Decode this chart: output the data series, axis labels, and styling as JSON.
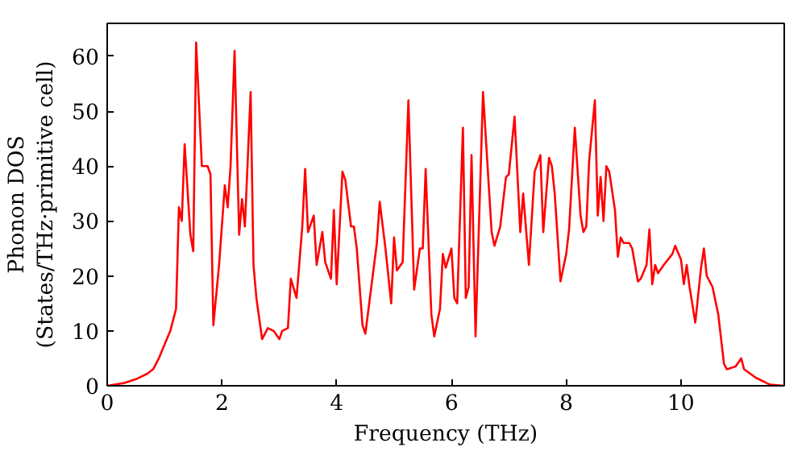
{
  "chart_data": {
    "type": "line",
    "xlabel": "Frequency (THz)",
    "ylabel": "Phonon DOS\n(States/THz·primitive cell)",
    "xlim": [
      0,
      11.8
    ],
    "ylim": [
      0,
      66
    ],
    "xticks": [
      0,
      2,
      4,
      6,
      8,
      10
    ],
    "yticks": [
      0,
      10,
      20,
      30,
      40,
      50,
      60
    ],
    "grid": false,
    "series": [
      {
        "color": "#ff0000",
        "x": [
          0,
          0.3,
          0.5,
          0.7,
          0.8,
          0.9,
          1.0,
          1.1,
          1.2,
          1.25,
          1.3,
          1.35,
          1.45,
          1.5,
          1.55,
          1.65,
          1.75,
          1.8,
          1.85,
          1.95,
          2.05,
          2.1,
          2.15,
          2.22,
          2.3,
          2.35,
          2.4,
          2.5,
          2.55,
          2.6,
          2.7,
          2.8,
          2.9,
          3.0,
          3.05,
          3.15,
          3.2,
          3.3,
          3.4,
          3.45,
          3.5,
          3.6,
          3.65,
          3.75,
          3.8,
          3.9,
          3.95,
          4.0,
          4.1,
          4.15,
          4.25,
          4.3,
          4.35,
          4.45,
          4.5,
          4.7,
          4.75,
          4.85,
          4.95,
          5.0,
          5.05,
          5.15,
          5.25,
          5.35,
          5.45,
          5.5,
          5.55,
          5.65,
          5.7,
          5.8,
          5.85,
          5.9,
          6.0,
          6.05,
          6.1,
          6.2,
          6.25,
          6.3,
          6.35,
          6.42,
          6.55,
          6.7,
          6.75,
          6.85,
          6.95,
          7.0,
          7.1,
          7.2,
          7.25,
          7.35,
          7.45,
          7.55,
          7.6,
          7.7,
          7.75,
          7.8,
          7.9,
          8.0,
          8.05,
          8.15,
          8.25,
          8.3,
          8.35,
          8.4,
          8.5,
          8.55,
          8.6,
          8.65,
          8.7,
          8.75,
          8.85,
          8.9,
          8.95,
          9.0,
          9.1,
          9.15,
          9.25,
          9.3,
          9.4,
          9.45,
          9.5,
          9.55,
          9.6,
          9.7,
          9.85,
          9.9,
          10.0,
          10.05,
          10.1,
          10.15,
          10.25,
          10.35,
          10.4,
          10.45,
          10.55,
          10.65,
          10.75,
          10.8,
          10.95,
          11.05,
          11.1,
          11.3,
          11.55,
          11.8
        ],
        "values": [
          0,
          0.5,
          1.2,
          2.2,
          3,
          5,
          7.5,
          10,
          14,
          32.5,
          30,
          44,
          27.5,
          24.5,
          62.5,
          40,
          40,
          38.5,
          11,
          22,
          36.5,
          32.5,
          40,
          61,
          27.5,
          34,
          29,
          53.5,
          22,
          16,
          8.5,
          10.5,
          10,
          8.5,
          10,
          10.5,
          19.5,
          16,
          29,
          39.5,
          28,
          31,
          22,
          28,
          22.5,
          19.5,
          32,
          18.5,
          39,
          37.5,
          29,
          29,
          25,
          11,
          9.5,
          26,
          33.5,
          25,
          15,
          27,
          21,
          22.5,
          52,
          17.5,
          25,
          25,
          39.5,
          13,
          9,
          14,
          24,
          21.5,
          25,
          16,
          15,
          47,
          16,
          18,
          42,
          9,
          53.5,
          28,
          25.5,
          29,
          38,
          38.5,
          49,
          28,
          35,
          22,
          39,
          42,
          28,
          41.5,
          40,
          35,
          19,
          24,
          28.5,
          47,
          31,
          28,
          29,
          41,
          52,
          31,
          38,
          30,
          40,
          39,
          32,
          23.5,
          27,
          26,
          26,
          25,
          19,
          19.5,
          22,
          28.5,
          18.5,
          22,
          20.5,
          22,
          24,
          25.5,
          23,
          18.5,
          22,
          18,
          11.5,
          21.5,
          25,
          20,
          18,
          13,
          4,
          3,
          3.5,
          5,
          3,
          1.5,
          0.2,
          0
        ]
      }
    ]
  }
}
